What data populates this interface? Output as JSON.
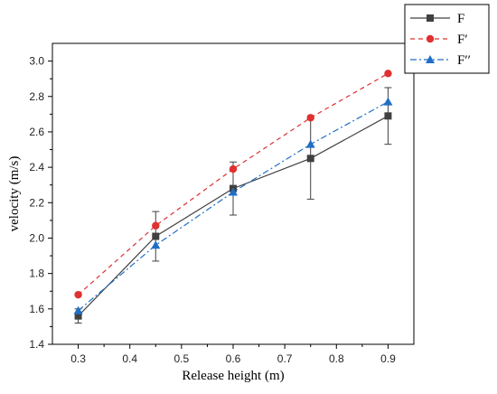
{
  "chart_data": {
    "type": "line",
    "xlabel": "Release height (m)",
    "ylabel": "velocity (m/s)",
    "xlim": [
      0.25,
      0.95
    ],
    "ylim": [
      1.4,
      3.1
    ],
    "xticks": [
      "0.3",
      "0.4",
      "0.5",
      "0.6",
      "0.7",
      "0.8",
      "0.9"
    ],
    "yticks": [
      "1.4",
      "1.6",
      "1.8",
      "2.0",
      "2.2",
      "2.4",
      "2.6",
      "2.8",
      "3.0"
    ],
    "x": [
      0.3,
      0.45,
      0.6,
      0.75,
      0.9
    ],
    "legend_position": "top-right, outside plot",
    "series": [
      {
        "name": "F",
        "values": [
          1.56,
          2.01,
          2.28,
          2.45,
          2.69
        ],
        "error": [
          0.04,
          0.14,
          0.15,
          0.23,
          0.16
        ],
        "color": "#404040",
        "marker": "square",
        "line": "solid"
      },
      {
        "name": "F′",
        "values": [
          1.68,
          2.07,
          2.39,
          2.68,
          2.93
        ],
        "color": "#e03030",
        "marker": "circle",
        "line": "dashed"
      },
      {
        "name": "F′′",
        "values": [
          1.59,
          1.96,
          2.26,
          2.53,
          2.77
        ],
        "color": "#1f6fc5",
        "marker": "triangle",
        "line": "dash-dot"
      }
    ]
  }
}
